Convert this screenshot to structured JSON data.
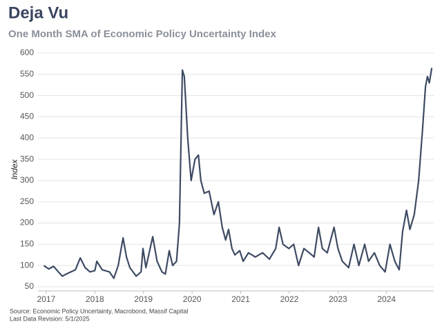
{
  "chart_data": {
    "type": "line",
    "title": "Deja Vu",
    "subtitle": "One Month SMA of Economic Policy Uncertainty Index",
    "y_label": "Index",
    "source": "Source: Economic Policy Uncertainty, Macrobond, Massif Capital",
    "revision": "Last Data Revision: 5/1/2025",
    "x": [
      2016.95,
      2017.05,
      2017.15,
      2017.25,
      2017.33,
      2017.45,
      2017.6,
      2017.7,
      2017.8,
      2017.9,
      2018.0,
      2018.04,
      2018.15,
      2018.3,
      2018.39,
      2018.48,
      2018.58,
      2018.65,
      2018.72,
      2018.85,
      2018.95,
      2018.99,
      2019.05,
      2019.19,
      2019.28,
      2019.38,
      2019.45,
      2019.53,
      2019.6,
      2019.68,
      2019.74,
      2019.8,
      2019.84,
      2019.91,
      2019.98,
      2020.06,
      2020.13,
      2020.18,
      2020.25,
      2020.35,
      2020.45,
      2020.54,
      2020.62,
      2020.69,
      2020.75,
      2020.82,
      2020.88,
      2020.98,
      2021.05,
      2021.16,
      2021.3,
      2021.45,
      2021.59,
      2021.72,
      2021.79,
      2021.87,
      2021.99,
      2022.09,
      2022.19,
      2022.3,
      2022.41,
      2022.51,
      2022.6,
      2022.68,
      2022.78,
      2022.92,
      2023.0,
      2023.09,
      2023.22,
      2023.33,
      2023.43,
      2023.55,
      2023.63,
      2023.75,
      2023.86,
      2023.97,
      2024.07,
      2024.17,
      2024.26,
      2024.33,
      2024.41,
      2024.48,
      2024.57,
      2024.66,
      2024.74,
      2024.8,
      2024.84,
      2024.88,
      2024.93
    ],
    "series": [
      {
        "color": "#3d4a63",
        "values": [
          100,
          92,
          98,
          85,
          75,
          82,
          90,
          118,
          95,
          85,
          88,
          110,
          90,
          85,
          70,
          100,
          165,
          120,
          95,
          75,
          85,
          140,
          95,
          168,
          110,
          85,
          80,
          135,
          100,
          110,
          200,
          560,
          545,
          400,
          300,
          350,
          360,
          300,
          270,
          275,
          220,
          250,
          190,
          160,
          185,
          140,
          125,
          135,
          110,
          130,
          120,
          130,
          115,
          140,
          190,
          150,
          140,
          150,
          100,
          140,
          130,
          120,
          190,
          140,
          130,
          190,
          140,
          110,
          95,
          150,
          100,
          150,
          110,
          130,
          100,
          85,
          150,
          110,
          90,
          180,
          230,
          185,
          220,
          300,
          420,
          520,
          545,
          530,
          565
        ]
      }
    ],
    "xlim": [
      2016.83,
      2024.97
    ],
    "xticks": [
      2017,
      2018,
      2019,
      2020,
      2021,
      2022,
      2023,
      2024
    ],
    "ylim": [
      50,
      600
    ],
    "yticks": [
      50,
      100,
      150,
      200,
      250,
      300,
      350,
      400,
      450,
      500,
      550,
      600
    ],
    "grid": true
  }
}
